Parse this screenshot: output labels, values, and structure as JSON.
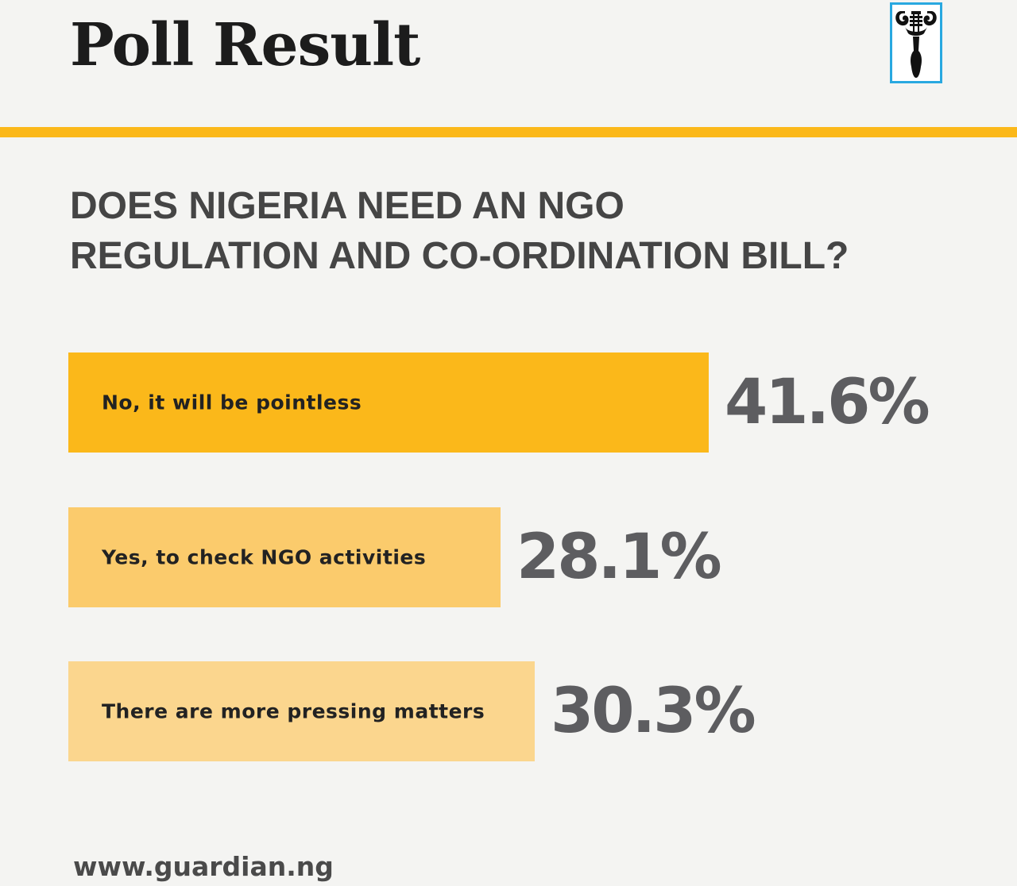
{
  "header": {
    "title": "Poll Result",
    "logo_icon": "guardian-logo-icon"
  },
  "colors": {
    "accent": "#fbb81a",
    "bar_1": "#fbb81a",
    "bar_2": "#fbcb6c",
    "bar_3": "#fbd68e",
    "percent_text": "#5d5d60",
    "logo_border": "#29a8e0"
  },
  "question": {
    "line1": "DOES NIGERIA NEED AN NGO",
    "line2": "REGULATION AND CO-ORDINATION BILL?"
  },
  "chart_data": {
    "type": "bar",
    "orientation": "horizontal",
    "title": "DOES NIGERIA NEED AN NGO REGULATION AND CO-ORDINATION BILL?",
    "categories": [
      "No, it will be pointless",
      "Yes, to check NGO activities",
      "There are more pressing matters"
    ],
    "values": [
      41.6,
      28.1,
      30.3
    ],
    "value_labels": [
      "41.6%",
      "28.1%",
      "30.3%"
    ],
    "unit": "%"
  },
  "footer": {
    "url": "www.guardian.ng"
  }
}
